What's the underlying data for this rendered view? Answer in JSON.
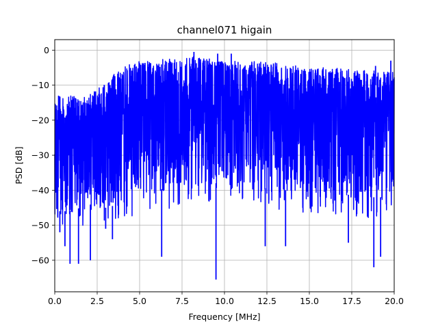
{
  "chart_data": {
    "type": "line",
    "title": "channel071 higain",
    "xlabel": "Frequency [MHz]",
    "ylabel": "PSD [dB]",
    "xlim": [
      0,
      20
    ],
    "ylim": [
      -69,
      3
    ],
    "xticks": [
      0,
      2.5,
      5,
      7.5,
      10,
      12.5,
      15,
      17.5,
      20
    ],
    "xtick_labels": [
      "0.0",
      "2.5",
      "5.0",
      "7.5",
      "10.0",
      "12.5",
      "15.0",
      "17.5",
      "20.0"
    ],
    "yticks": [
      0,
      -10,
      -20,
      -30,
      -40,
      -50,
      -60
    ],
    "ytick_labels": [
      "0",
      "−10",
      "−20",
      "−30",
      "−40",
      "−50",
      "−60"
    ],
    "grid": true,
    "series": [
      {
        "color": "#0000ff",
        "envelope_x": [
          0,
          1,
          2,
          3,
          3.8,
          4.5,
          5,
          6,
          7,
          8,
          9,
          10,
          11,
          12,
          13,
          14,
          15,
          16,
          17,
          18,
          19,
          20
        ],
        "envelope_upper": [
          -12,
          -13,
          -13,
          -9,
          -5,
          -4,
          -3,
          -2.5,
          -2,
          -1.5,
          -2,
          -2.5,
          -3,
          -3,
          -3.5,
          -4,
          -4.5,
          -5,
          -5,
          -5.5,
          -6,
          -6
        ],
        "envelope_lower": [
          -46,
          -46,
          -44,
          -45,
          -44,
          -42,
          -40,
          -40,
          -39,
          -38,
          -38,
          -38,
          -39,
          -39,
          -40,
          -40,
          -41,
          -41,
          -41,
          -42,
          -42,
          -42
        ],
        "minima": [
          {
            "x": 0.3,
            "y": -52
          },
          {
            "x": 0.6,
            "y": -56
          },
          {
            "x": 0.9,
            "y": -61
          },
          {
            "x": 1.4,
            "y": -61
          },
          {
            "x": 2.1,
            "y": -60
          },
          {
            "x": 3.0,
            "y": -51
          },
          {
            "x": 3.4,
            "y": -54
          },
          {
            "x": 6.3,
            "y": -59
          },
          {
            "x": 9.5,
            "y": -65.5
          },
          {
            "x": 12.4,
            "y": -56
          },
          {
            "x": 13.6,
            "y": -56
          },
          {
            "x": 17.3,
            "y": -55
          },
          {
            "x": 18.8,
            "y": -62
          },
          {
            "x": 19.2,
            "y": -59
          }
        ],
        "maxima": [
          {
            "x": 8.2,
            "y": -0.5
          },
          {
            "x": 9.6,
            "y": -1.0
          },
          {
            "x": 10.4,
            "y": -1.0
          },
          {
            "x": 18.9,
            "y": -4.5
          },
          {
            "x": 19.8,
            "y": -3.0
          }
        ]
      }
    ]
  }
}
